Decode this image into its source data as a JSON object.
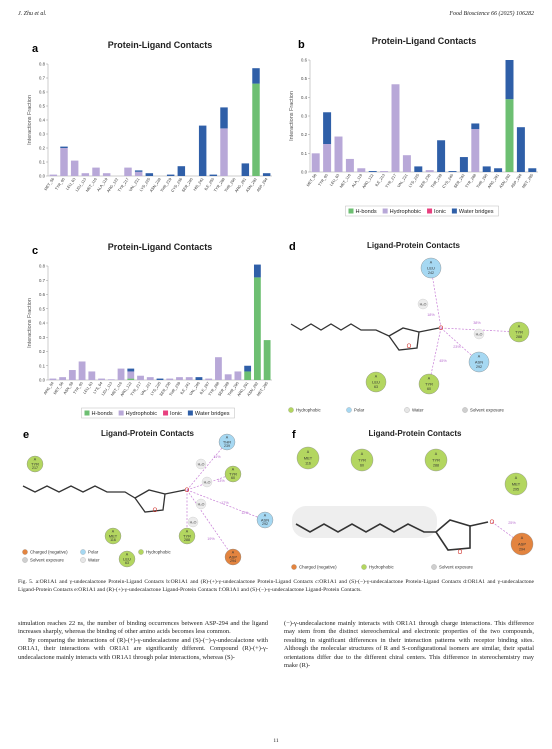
{
  "header": {
    "authors": "J. Zhu et al.",
    "journal": "Food Bioscience 66 (2025) 106282"
  },
  "chart_data": [
    {
      "type": "bar",
      "panel": "a",
      "title": "Protein-Ligand Contacts",
      "ylabel": "Interactions Fraction",
      "categories": [
        "MET_56",
        "TYR_60",
        "LEU_63",
        "LEU_113",
        "MET_116",
        "ALA_119",
        "ARG_122",
        "TYR_217",
        "VAL_221",
        "LYS_225",
        "ASN_228",
        "THR_229",
        "CYS_236",
        "SER_240",
        "HIS_242",
        "ILE_250",
        "TYR_288",
        "THR_290",
        "ARG_291",
        "ASN_292",
        "ASP_294"
      ],
      "series": [
        {
          "color": "#6dbf72",
          "values": [
            0,
            0,
            0,
            0,
            0,
            0,
            0,
            0,
            0,
            0,
            0,
            0,
            0,
            0,
            0,
            0,
            0,
            0,
            0,
            0.66,
            0
          ]
        },
        {
          "color": "#b8a8d8",
          "values": [
            0.01,
            0.2,
            0.11,
            0.02,
            0.06,
            0.02,
            0,
            0.06,
            0.03,
            0,
            0,
            0,
            0,
            0,
            0,
            0,
            0.34,
            0,
            0,
            0,
            0
          ]
        },
        {
          "color": "#e8407f",
          "values": [
            0,
            0,
            0,
            0,
            0,
            0,
            0,
            0,
            0,
            0,
            0,
            0,
            0,
            0,
            0,
            0,
            0,
            0,
            0,
            0,
            0
          ]
        },
        {
          "color": "#2f5fa8",
          "values": [
            0,
            0.01,
            0,
            0,
            0,
            0,
            0,
            0,
            0.01,
            0.02,
            0,
            0.01,
            0.07,
            0,
            0.36,
            0.01,
            0.15,
            0,
            0.09,
            0.11,
            0.02
          ]
        }
      ],
      "ylim": [
        0,
        0.8
      ],
      "yticks": [
        {
          "value": 0,
          "label": "0.0"
        },
        0.1,
        0.2,
        0.3,
        0.4,
        0.5,
        0.6,
        0.7,
        0.8
      ]
    },
    {
      "type": "bar",
      "panel": "b",
      "title": "Protein-Ligand Contacts",
      "ylabel": "Interactions Fraction",
      "categories": [
        "MET_56",
        "TYR_60",
        "LEU_63",
        "MET_116",
        "ALA_119",
        "ARG_122",
        "ILE_213",
        "TYR_217",
        "VAL_221",
        "LYS_225",
        "SER_238",
        "THR_239",
        "CYS_240",
        "SER_242",
        "TYR_288",
        "THR_290",
        "ARG_291",
        "ASN_292",
        "ASP_294",
        "MET_295"
      ],
      "series": [
        {
          "name": "H-bonds",
          "color": "#6dbf72",
          "values": [
            0,
            0,
            0,
            0,
            0,
            0,
            0,
            0,
            0,
            0,
            0,
            0,
            0,
            0,
            0,
            0,
            0,
            0.39,
            0,
            0
          ]
        },
        {
          "name": "Hydrophobic",
          "color": "#b8a8d8",
          "values": [
            0.1,
            0.15,
            0.19,
            0.07,
            0.02,
            0,
            0.005,
            0.47,
            0.09,
            0,
            0.01,
            0,
            0,
            0,
            0.23,
            0,
            0,
            0,
            0,
            0
          ]
        },
        {
          "name": "Ionic",
          "color": "#e8407f",
          "values": [
            0,
            0,
            0,
            0,
            0,
            0,
            0,
            0,
            0,
            0,
            0,
            0,
            0,
            0,
            0,
            0,
            0,
            0,
            0,
            0
          ]
        },
        {
          "name": "Water bridges",
          "color": "#2f5fa8",
          "values": [
            0,
            0.17,
            0,
            0,
            0,
            0.005,
            0,
            0,
            0,
            0.03,
            0,
            0.17,
            0.005,
            0.08,
            0.03,
            0.03,
            0.02,
            0.21,
            0.24,
            0.02
          ]
        }
      ],
      "ylim": [
        0,
        0.6
      ],
      "yticks": [
        {
          "value": 0,
          "label": "0.0"
        },
        0.1,
        0.2,
        0.3,
        0.4,
        0.5,
        0.6
      ]
    },
    {
      "type": "bar",
      "panel": "c",
      "title": "Protein-Ligand Contacts",
      "ylabel": "Interactions Fraction",
      "categories": [
        "ARG_54",
        "MET_56",
        "ASN_59",
        "TYR_60",
        "LEU_63",
        "LYS_64",
        "LEU_113",
        "MET_116",
        "ARG_122",
        "TYR_217",
        "VAL_221",
        "LYS_225",
        "SER_238",
        "THR_239",
        "ILE_241",
        "VAL_246",
        "ILE_287",
        "TYR_288",
        "SER_289",
        "THR_290",
        "ARG_291",
        "ASN_292",
        "MET_295"
      ],
      "series": [
        {
          "name": "H-bonds",
          "color": "#6dbf72",
          "values": [
            0,
            0,
            0,
            0,
            0,
            0,
            0,
            0,
            0.01,
            0,
            0,
            0,
            0,
            0,
            0,
            0,
            0,
            0,
            0,
            0,
            0.06,
            0.72,
            0.28
          ]
        },
        {
          "name": "Hydrophobic",
          "color": "#b8a8d8",
          "values": [
            0.01,
            0.02,
            0.07,
            0.13,
            0.06,
            0.01,
            0.005,
            0.08,
            0.05,
            0.03,
            0.02,
            0,
            0.01,
            0.02,
            0.02,
            0,
            0.01,
            0.16,
            0.04,
            0.06,
            0,
            0,
            0
          ]
        },
        {
          "name": "Ionic",
          "color": "#e8407f",
          "values": [
            0,
            0,
            0,
            0,
            0,
            0,
            0,
            0,
            0,
            0,
            0,
            0,
            0,
            0,
            0,
            0,
            0,
            0,
            0,
            0,
            0,
            0,
            0
          ]
        },
        {
          "name": "Water bridges",
          "color": "#2f5fa8",
          "values": [
            0,
            0,
            0,
            0,
            0,
            0,
            0,
            0,
            0.02,
            0,
            0,
            0.01,
            0,
            0,
            0,
            0.02,
            0,
            0,
            0,
            0,
            0.04,
            0.09,
            0
          ]
        }
      ],
      "ylim": [
        0,
        0.8
      ],
      "yticks": [
        {
          "value": 0,
          "label": "0.0"
        },
        0.1,
        0.2,
        0.3,
        0.4,
        0.5,
        0.6,
        0.7,
        0.8
      ]
    }
  ],
  "diagrams": [
    {
      "panel": "d",
      "title": "Ligand-Protein Contacts",
      "nodes": [
        {
          "chain": "A",
          "residue": "LEU",
          "number": "242",
          "color": "#a6d8f2"
        },
        {
          "chain": "A",
          "residue": "TYR",
          "number": "288",
          "color": "#b3d660"
        },
        {
          "chain": "A",
          "residue": "ASN",
          "number": "292",
          "color": "#a6d8f2"
        },
        {
          "chain": "A",
          "residue": "LEU",
          "number": "63",
          "color": "#b3d660"
        },
        {
          "chain": "A",
          "residue": "TYR",
          "number": "60",
          "color": "#b3d660"
        }
      ],
      "waters": [
        "H₂O",
        "H₂O"
      ],
      "atoms": [
        "O",
        "O"
      ],
      "percents": [
        "18%",
        "38%",
        "23%",
        "45%"
      ],
      "legend": [
        {
          "label": "Hydrophobic",
          "color": "#b3d660"
        },
        {
          "label": "Polar",
          "color": "#a6d8f2"
        },
        {
          "label": "Water",
          "color": "#e6e6e6"
        },
        {
          "label": "Solvent exposure",
          "color": "#cfcfcf"
        }
      ]
    },
    {
      "panel": "e",
      "title": "Ligand-Protein Contacts",
      "nodes": [
        {
          "chain": "A",
          "residue": "TYR",
          "number": "217",
          "color": "#b3d660"
        },
        {
          "chain": "A",
          "residue": "THR",
          "number": "239",
          "color": "#a6d8f2"
        },
        {
          "chain": "A",
          "residue": "TYR",
          "number": "60",
          "color": "#b3d660"
        },
        {
          "chain": "A",
          "residue": "MET",
          "number": "116",
          "color": "#b3d660"
        },
        {
          "chain": "A",
          "residue": "LEU",
          "number": "63",
          "color": "#b3d660"
        },
        {
          "chain": "A",
          "residue": "TYR",
          "number": "288",
          "color": "#b3d660"
        },
        {
          "chain": "A",
          "residue": "ASN",
          "number": "292",
          "color": "#a6d8f2"
        },
        {
          "chain": "A",
          "residue": "ASP",
          "number": "294",
          "color": "#e3843f"
        }
      ],
      "waters": [
        "H₂O",
        "H₂O",
        "H₂O",
        "H₂O"
      ],
      "atoms": [
        "O",
        "O"
      ],
      "percents": [
        "11%",
        "13%",
        "17%",
        "12%",
        "19%"
      ],
      "legend": [
        {
          "label": "Charged (negative)",
          "color": "#e3843f"
        },
        {
          "label": "Polar",
          "color": "#a6d8f2"
        },
        {
          "label": "Hydrophobic",
          "color": "#b3d660"
        },
        {
          "label": "Solvent exposure",
          "color": "#cfcfcf"
        },
        {
          "label": "Water",
          "color": "#e6e6e6"
        }
      ]
    },
    {
      "panel": "f",
      "title": "Ligand-Protein Contacts",
      "nodes": [
        {
          "chain": "A",
          "residue": "MET",
          "number": "116",
          "color": "#b3d660"
        },
        {
          "chain": "A",
          "residue": "TYR",
          "number": "60",
          "color": "#b3d660"
        },
        {
          "chain": "A",
          "residue": "TYR",
          "number": "288",
          "color": "#b3d660"
        },
        {
          "chain": "A",
          "residue": "MET",
          "number": "295",
          "color": "#b3d660"
        },
        {
          "chain": "A",
          "residue": "ASP",
          "number": "294",
          "color": "#e3843f"
        }
      ],
      "waters": [],
      "atoms": [
        "O",
        "O"
      ],
      "percents": [
        "25%"
      ],
      "legend": [
        {
          "label": "Charged (negative)",
          "color": "#e3843f"
        },
        {
          "label": "Hydrophobic",
          "color": "#b3d660"
        },
        {
          "label": "Solvent exposure",
          "color": "#cfcfcf"
        }
      ]
    }
  ],
  "caption": "Fig. 5. a:OR1A1 and γ-undecalactone Protein-Ligand Contacts b:OR1A1 and (R)-(+)-γ-undecalactone Protein-Ligand Contacts c:OR1A1 and (S)-(−)-γ-undecalactone Protein-Ligand Contacts d:OR1A1 and γ-undecalactone Ligand-Protein Contacts e:OR1A1 and (R)-(+)-γ-undecalactone Ligand-Protein Contacts f:OR1A1 and (S)-(−)-γ-undecalactone Ligand-Protein Contacts.",
  "body": {
    "left": [
      "simulation reaches 22 ns, the number of binding occurrences between ASP-294 and the ligand increases sharply, whereas the binding of other amino acids becomes less common.",
      "By comparing the interactions of (R)-(+)-γ-undecalactone and (S)-(−)-γ-undecalactone with OR1A1, their interactions with OR1A1 are significantly different. Compound (R)-(+)-γ-undecalactone mainly interacts with OR1A1 through polar interactions, whereas (S)-"
    ],
    "right": [
      "(−)-γ-undecalactone mainly interacts with OR1A1 through charge interactions. This difference may stem from the distinct stereochemical and electronic properties of the two compounds, resulting in significant differences in their interaction patterns with receptor binding sites. Although the molecular structures of R and S-configurational isomers are similar, their spatial orientations differ due to the different chiral centers. This difference in stereochemistry may make (R)-"
    ]
  },
  "page_number": "11"
}
